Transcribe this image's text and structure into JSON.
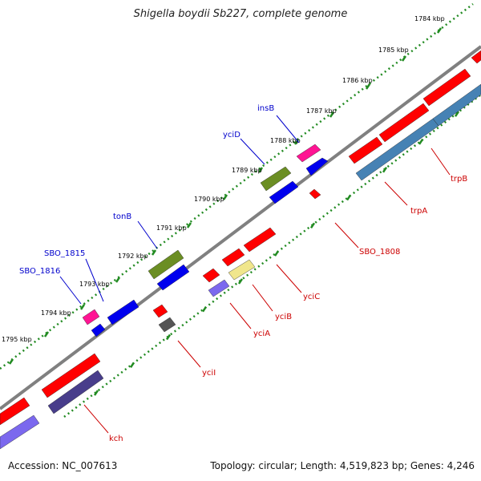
{
  "title": "Shigella boydii Sb227, complete genome",
  "accession_text": "Accession: NC_007613",
  "summary_text": "Topology: circular; Length: 4,519,823 bp; Genes: 4,246",
  "colors": {
    "backbone": "#808080",
    "ruler": "#228B22",
    "forward_label": "#0000cc",
    "reverse_label": "#cc0000"
  },
  "ruler_labels": [
    "1784 kbp",
    "1785 kbp",
    "1786 kbp",
    "1787 kbp",
    "1788 kbp",
    "1789 kbp",
    "1790 kbp",
    "1791 kbp",
    "1792 kbp",
    "1793 kbp",
    "1794 kbp",
    "1795 kbp"
  ],
  "gene_labels_forward": [
    "insB",
    "yciD",
    "tonB",
    "SBO_1815",
    "SBO_1816"
  ],
  "gene_labels_reverse": [
    "trpB",
    "trpA",
    "SBO_1808",
    "yciC",
    "yciB",
    "yciA",
    "yciI",
    "kch"
  ]
}
